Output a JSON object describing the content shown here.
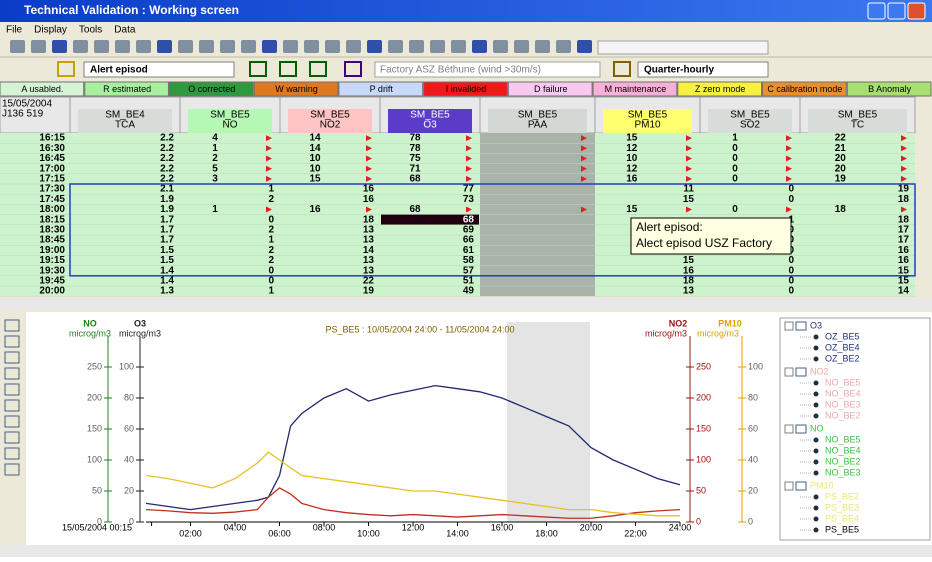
{
  "window": {
    "title": "Technical Validation : Working screen"
  },
  "menu": [
    "File",
    "Display",
    "Tools",
    "Data"
  ],
  "toolbar": {
    "episode": "Alert episod",
    "site": "Factory ASZ Béthune (wind >30m/s)",
    "step": "Quarter-hourly"
  },
  "codes": [
    {
      "label": "A usabled.",
      "color": "#d4f4d4"
    },
    {
      "label": "R estimated",
      "color": "#a8f0a0"
    },
    {
      "label": "O corrected",
      "color": "#2e9a3e"
    },
    {
      "label": "W warning",
      "color": "#e07820"
    },
    {
      "label": "P drift",
      "color": "#c8d8f8"
    },
    {
      "label": "I invalided",
      "color": "#f01818"
    },
    {
      "label": "D failure",
      "color": "#f8c8f0"
    },
    {
      "label": "M maintenance",
      "color": "#f8b0d8"
    },
    {
      "label": "Z zero mode",
      "color": "#f8f040"
    },
    {
      "label": "C calibration mode",
      "color": "#e89030"
    },
    {
      "label": "B Anomaly",
      "color": "#a8e070"
    }
  ],
  "table": {
    "date": "15/05/2004",
    "id": "J136 519",
    "columns": [
      {
        "station": "SM_BE4",
        "pollutant": "TCA",
        "color": "#d8dcd8",
        "body": "#cdf3cd"
      },
      {
        "station": "SM_BE5",
        "pollutant": "NO",
        "color": "#b4f8b4",
        "body": "#cdf3cd"
      },
      {
        "station": "SM_BE5",
        "pollutant": "NO2",
        "color": "#ffc4c4",
        "body": "#cdf3cd"
      },
      {
        "station": "SM_BE5",
        "pollutant": "O3",
        "color": "#5a3cc8",
        "body": "#cdf3cd"
      },
      {
        "station": "SM_BE5",
        "pollutant": "PAA",
        "color": "#d4d8d4",
        "body": "#a9b3a9"
      },
      {
        "station": "SM_BE5",
        "pollutant": "PM10",
        "color": "#ffff70",
        "body": "#cdf3cd"
      },
      {
        "station": "SM_BE5",
        "pollutant": "SO2",
        "color": "#d8dcd8",
        "body": "#cdf3cd"
      },
      {
        "station": "SM_BE5",
        "pollutant": "TC",
        "color": "#d8dcd8",
        "body": "#cdf3cd"
      }
    ],
    "rows": [
      {
        "time": "16:15",
        "flag": true,
        "values": [
          2.2,
          4,
          14,
          78,
          null,
          15,
          1,
          22
        ]
      },
      {
        "time": "16:30",
        "flag": true,
        "values": [
          2.2,
          1,
          14,
          78,
          null,
          12,
          0,
          21
        ]
      },
      {
        "time": "16:45",
        "flag": true,
        "values": [
          2.2,
          2,
          10,
          75,
          null,
          10,
          0,
          20
        ]
      },
      {
        "time": "17:00",
        "flag": true,
        "values": [
          2.2,
          5,
          10,
          71,
          null,
          12,
          0,
          20
        ]
      },
      {
        "time": "17:15",
        "flag": true,
        "values": [
          2.2,
          3,
          15,
          68,
          null,
          16,
          0,
          19
        ]
      },
      {
        "time": "17:30",
        "flag": false,
        "values": [
          2.1,
          1,
          16,
          77,
          null,
          11,
          0,
          19
        ]
      },
      {
        "time": "17:45",
        "flag": false,
        "values": [
          1.9,
          2,
          16,
          73,
          null,
          15,
          0,
          18
        ]
      },
      {
        "time": "18:00",
        "flag": true,
        "values": [
          1.9,
          1,
          16,
          68,
          null,
          15,
          0,
          18
        ]
      },
      {
        "time": "18:15",
        "flag": false,
        "values": [
          1.7,
          0,
          18,
          68,
          null,
          null,
          1,
          18
        ]
      },
      {
        "time": "18:30",
        "flag": false,
        "values": [
          1.7,
          2,
          13,
          69,
          null,
          null,
          0,
          17
        ]
      },
      {
        "time": "18:45",
        "flag": false,
        "values": [
          1.7,
          1,
          13,
          66,
          null,
          null,
          0,
          17
        ]
      },
      {
        "time": "19:00",
        "flag": false,
        "values": [
          1.5,
          2,
          14,
          61,
          null,
          16,
          0,
          16
        ]
      },
      {
        "time": "19:15",
        "flag": false,
        "values": [
          1.5,
          2,
          13,
          58,
          null,
          15,
          0,
          16
        ]
      },
      {
        "time": "19:30",
        "flag": false,
        "values": [
          1.4,
          0,
          13,
          57,
          null,
          16,
          0,
          15
        ]
      },
      {
        "time": "19:45",
        "flag": false,
        "values": [
          1.4,
          0,
          22,
          51,
          null,
          18,
          0,
          15
        ]
      },
      {
        "time": "20:00",
        "flag": false,
        "values": [
          1.3,
          1,
          19,
          49,
          null,
          13,
          0,
          14
        ]
      }
    ]
  },
  "tooltip": {
    "title": "Alert episod:",
    "text": "Alect episod USZ Factory"
  },
  "chart_data": {
    "type": "line",
    "title": "PS_BE5 : 10/05/2004 24:00 - 11/05/2004 24:00",
    "xlim": [
      0,
      24
    ],
    "xticks": [
      {
        "value": 0.25,
        "label": "15/05/2004 00:15"
      },
      {
        "value": 2,
        "label": "02:00"
      },
      {
        "value": 4,
        "label": "04:00"
      },
      {
        "value": 6,
        "label": "06:00"
      },
      {
        "value": 8,
        "label": "08:00"
      },
      {
        "value": 10,
        "label": "10:00"
      },
      {
        "value": 12,
        "label": "12:00"
      },
      {
        "value": 14,
        "label": "14:00"
      },
      {
        "value": 16,
        "label": "16:00"
      },
      {
        "value": 18,
        "label": "18:00"
      },
      {
        "value": 20,
        "label": "20:00"
      },
      {
        "value": 22,
        "label": "22:00"
      },
      {
        "value": 24,
        "label": "24:00"
      }
    ],
    "axes": [
      {
        "name": "NO",
        "unit": "microg/m3",
        "side": "left",
        "color": "#208020",
        "lim": [
          0,
          300
        ],
        "ticks": [
          0,
          50,
          100,
          150,
          200,
          250
        ]
      },
      {
        "name": "O3",
        "unit": "microg/m3",
        "side": "left",
        "color": "#202020",
        "lim": [
          0,
          120
        ],
        "ticks": [
          0,
          20,
          40,
          60,
          80,
          100
        ]
      },
      {
        "name": "NO2",
        "unit": "microg/m3",
        "side": "right",
        "color": "#a01010",
        "lim": [
          0,
          300
        ],
        "ticks": [
          0,
          50,
          100,
          150,
          200,
          250
        ]
      },
      {
        "name": "PM10",
        "unit": "microg/m3",
        "side": "right",
        "color": "#e0a000",
        "lim": [
          0,
          120
        ],
        "ticks": [
          0,
          20,
          40,
          60,
          80,
          100
        ]
      }
    ],
    "x": [
      0,
      1,
      2,
      3,
      4,
      5,
      5.5,
      6,
      6.5,
      7,
      8,
      9,
      10,
      11,
      12,
      13,
      14,
      15,
      16,
      17,
      18,
      19,
      20,
      21,
      22,
      23,
      24
    ],
    "series": [
      {
        "axis": 1,
        "color": "#202870",
        "values": [
          12,
          10,
          8,
          10,
          12,
          14,
          16,
          30,
          62,
          70,
          80,
          86,
          78,
          82,
          85,
          88,
          86,
          84,
          80,
          74,
          68,
          62,
          48,
          40,
          34,
          28,
          24
        ]
      },
      {
        "axis": 0,
        "color": "#c03020",
        "values": [
          20,
          18,
          15,
          14,
          16,
          20,
          40,
          55,
          45,
          30,
          20,
          15,
          12,
          10,
          12,
          10,
          8,
          10,
          12,
          10,
          8,
          6,
          6,
          10,
          15,
          18,
          20
        ]
      },
      {
        "axis": 3,
        "color": "#e8c020",
        "values": [
          30,
          28,
          25,
          22,
          28,
          38,
          45,
          40,
          35,
          30,
          28,
          26,
          24,
          22,
          20,
          20,
          18,
          16,
          14,
          12,
          10,
          8,
          8,
          6,
          5,
          4,
          4
        ]
      }
    ]
  },
  "tree": [
    {
      "label": "O3",
      "color": "#203080",
      "items": [
        "OZ_BE5",
        "OZ_BE4",
        "OZ_BE2"
      ]
    },
    {
      "label": "NO2",
      "color": "#f0a8a8",
      "items": [
        "NO_BE5",
        "NO_BE4",
        "NO_BE3",
        "NO_BE2"
      ]
    },
    {
      "label": "NO",
      "color": "#40c040",
      "items": [
        "NO_BE5",
        "NO_BE4",
        "NO_BE2",
        "NO_BE3"
      ]
    },
    {
      "label": "PM10",
      "color": "#e8e878",
      "items": [
        "PS_BE2",
        "PS_BE3",
        "PS_BE4",
        "PS_BE5"
      ]
    }
  ]
}
